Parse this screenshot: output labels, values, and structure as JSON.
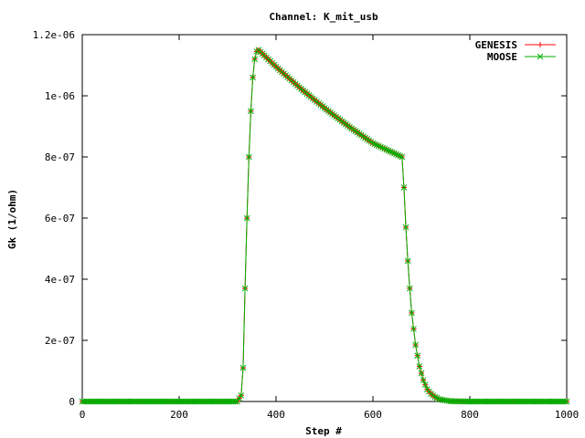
{
  "chart_data": {
    "type": "line",
    "title": "Channel: K_mit_usb",
    "xlabel": "Step #",
    "ylabel": "Gk (1/ohm)",
    "xlim": [
      0,
      1000
    ],
    "ylim": [
      0,
      1.2e-06
    ],
    "xticks": [
      0,
      200,
      400,
      600,
      800,
      1000
    ],
    "xtick_labels": [
      "0",
      "200",
      "400",
      "600",
      "800",
      "1000"
    ],
    "yticks": [
      0,
      2e-07,
      4e-07,
      6e-07,
      8e-07,
      1e-06,
      1.2e-06
    ],
    "ytick_labels": [
      "0",
      "2e-07",
      "4e-07",
      "6e-07",
      "8e-07",
      "1e-06",
      "1.2e-06"
    ],
    "grid": false,
    "legend_position": "top-right",
    "series": [
      {
        "name": "GENESIS",
        "color": "#ff0000",
        "marker": "plus",
        "x": [
          0,
          320,
          328,
          332,
          336,
          340,
          344,
          348,
          352,
          356,
          360,
          364,
          400,
          450,
          500,
          550,
          600,
          640,
          660,
          664,
          668,
          672,
          676,
          680,
          688,
          696,
          704,
          712,
          720,
          728,
          736,
          744,
          752,
          760,
          800,
          900,
          1000
        ],
        "values": [
          0,
          0,
          2e-08,
          1.1e-07,
          3.7e-07,
          6e-07,
          8e-07,
          9.5e-07,
          1.06e-06,
          1.12e-06,
          1.145e-06,
          1.15e-06,
          1.095e-06,
          1.025e-06,
          9.6e-07,
          9e-07,
          8.45e-07,
          8.15e-07,
          8e-07,
          7e-07,
          5.7e-07,
          4.6e-07,
          3.7e-07,
          2.9e-07,
          1.85e-07,
          1.15e-07,
          7e-08,
          4e-08,
          2.5e-08,
          1.5e-08,
          8e-09,
          5e-09,
          3e-09,
          1e-09,
          0,
          0,
          0
        ]
      },
      {
        "name": "MOOSE",
        "color": "#00b000",
        "marker": "cross",
        "x": [
          0,
          320,
          328,
          332,
          336,
          340,
          344,
          348,
          352,
          356,
          360,
          364,
          400,
          450,
          500,
          550,
          600,
          640,
          660,
          664,
          668,
          672,
          676,
          680,
          688,
          696,
          704,
          712,
          720,
          728,
          736,
          744,
          752,
          760,
          800,
          900,
          1000
        ],
        "values": [
          0,
          0,
          2e-08,
          1.1e-07,
          3.7e-07,
          6e-07,
          8e-07,
          9.5e-07,
          1.06e-06,
          1.12e-06,
          1.145e-06,
          1.15e-06,
          1.095e-06,
          1.025e-06,
          9.6e-07,
          9e-07,
          8.45e-07,
          8.15e-07,
          8e-07,
          7e-07,
          5.7e-07,
          4.6e-07,
          3.7e-07,
          2.9e-07,
          1.85e-07,
          1.15e-07,
          7e-08,
          4e-08,
          2.5e-08,
          1.5e-08,
          8e-09,
          5e-09,
          3e-09,
          1e-09,
          0,
          0,
          0
        ]
      }
    ]
  }
}
